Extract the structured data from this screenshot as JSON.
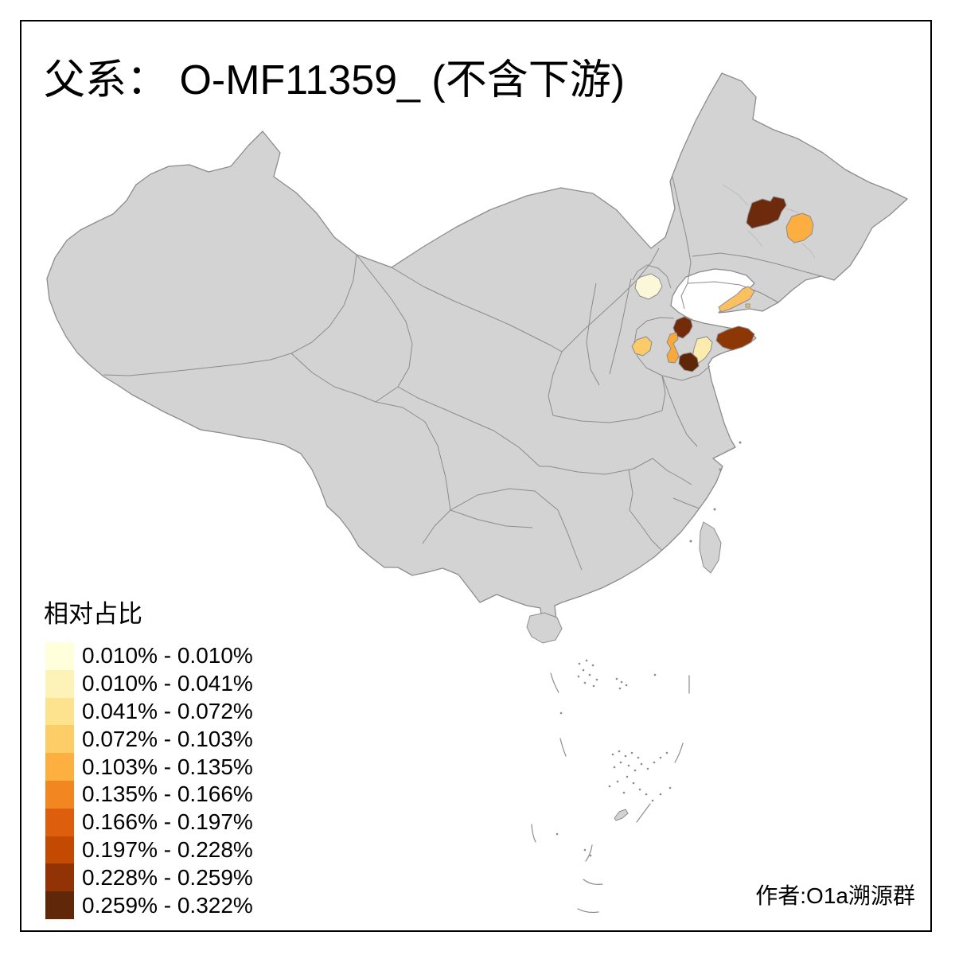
{
  "title": "父系： O-MF11359_ (不含下游)",
  "attribution": "作者:O1a溯源群",
  "legend": {
    "title": "相对占比",
    "items": [
      {
        "label": "0.010% - 0.010%",
        "color": "#FFFFDC"
      },
      {
        "label": "0.010% - 0.041%",
        "color": "#FDF3B8"
      },
      {
        "label": "0.041% - 0.072%",
        "color": "#FDE38E"
      },
      {
        "label": "0.072% - 0.103%",
        "color": "#FDCD67"
      },
      {
        "label": "0.103% - 0.135%",
        "color": "#FDB040"
      },
      {
        "label": "0.135% - 0.166%",
        "color": "#F28621"
      },
      {
        "label": "0.166% - 0.197%",
        "color": "#DD5F0D"
      },
      {
        "label": "0.197% - 0.228%",
        "color": "#C44A02"
      },
      {
        "label": "0.228% - 0.259%",
        "color": "#913305"
      },
      {
        "label": "0.259% - 0.322%",
        "color": "#602708"
      }
    ]
  },
  "map": {
    "land_color": "#D3D3D3",
    "border_color": "#8C8C8C",
    "faint_border_color": "#BDBDBD",
    "sea_color": "#FFFFFF",
    "regions": [
      {
        "name": "northeast-heilongjiang-dark",
        "color": "#6E2A0C",
        "legend_class": "0.259% - 0.322%"
      },
      {
        "name": "northeast-heilongjiang-orange",
        "color": "#FCAE40",
        "legend_class": "0.103% - 0.135%"
      },
      {
        "name": "beijing-area",
        "color": "#FBF8DA",
        "legend_class": "0.010% - 0.010%"
      },
      {
        "name": "liaodong-peninsula-coast",
        "color": "#FBC160",
        "legend_class": "0.072% - 0.103%"
      },
      {
        "name": "shandong-north-dark",
        "color": "#732B0A",
        "legend_class": "0.259% - 0.322%"
      },
      {
        "name": "shandong-west-orange",
        "color": "#FBCA69",
        "legend_class": "0.072% - 0.103%"
      },
      {
        "name": "shandong-central-orange",
        "color": "#F9A83B",
        "legend_class": "0.103% - 0.135%"
      },
      {
        "name": "shandong-east-pale",
        "color": "#FCEBAE",
        "legend_class": "0.041% - 0.072%"
      },
      {
        "name": "shandong-south-dark",
        "color": "#5F2708",
        "legend_class": "0.259% - 0.322%"
      },
      {
        "name": "shandong-peninsula-redbrown",
        "color": "#8E3706",
        "legend_class": "0.228% - 0.259%"
      }
    ]
  },
  "chart_data": {
    "type": "choropleth",
    "title": "父系： O-MF11359_ (不含下游)",
    "legend_title": "相对占比",
    "legend_position": "bottom-left",
    "classes": [
      "0.010% - 0.010%",
      "0.010% - 0.041%",
      "0.041% - 0.072%",
      "0.072% - 0.103%",
      "0.103% - 0.135%",
      "0.135% - 0.166%",
      "0.166% - 0.197%",
      "0.197% - 0.228%",
      "0.228% - 0.259%",
      "0.259% - 0.322%"
    ],
    "value_range": [
      "0.010%",
      "0.322%"
    ],
    "highlighted_regions": [
      {
        "area": "northeast China (Heilongjiang, western prefecture)",
        "class": "0.259% - 0.322%"
      },
      {
        "area": "northeast China (Heilongjiang, eastern prefecture)",
        "class": "0.103% - 0.135%"
      },
      {
        "area": "Beijing area",
        "class": "0.010% - 0.010%"
      },
      {
        "area": "Liaodong peninsula coast",
        "class": "0.072% - 0.103%"
      },
      {
        "area": "Shandong north",
        "class": "0.259% - 0.322%"
      },
      {
        "area": "Shandong west",
        "class": "0.072% - 0.103%"
      },
      {
        "area": "Shandong central",
        "class": "0.103% - 0.135%"
      },
      {
        "area": "Shandong east (pale)",
        "class": "0.041% - 0.072%"
      },
      {
        "area": "Shandong south",
        "class": "0.259% - 0.322%"
      },
      {
        "area": "Shandong peninsula (east tip)",
        "class": "0.228% - 0.259%"
      }
    ]
  }
}
